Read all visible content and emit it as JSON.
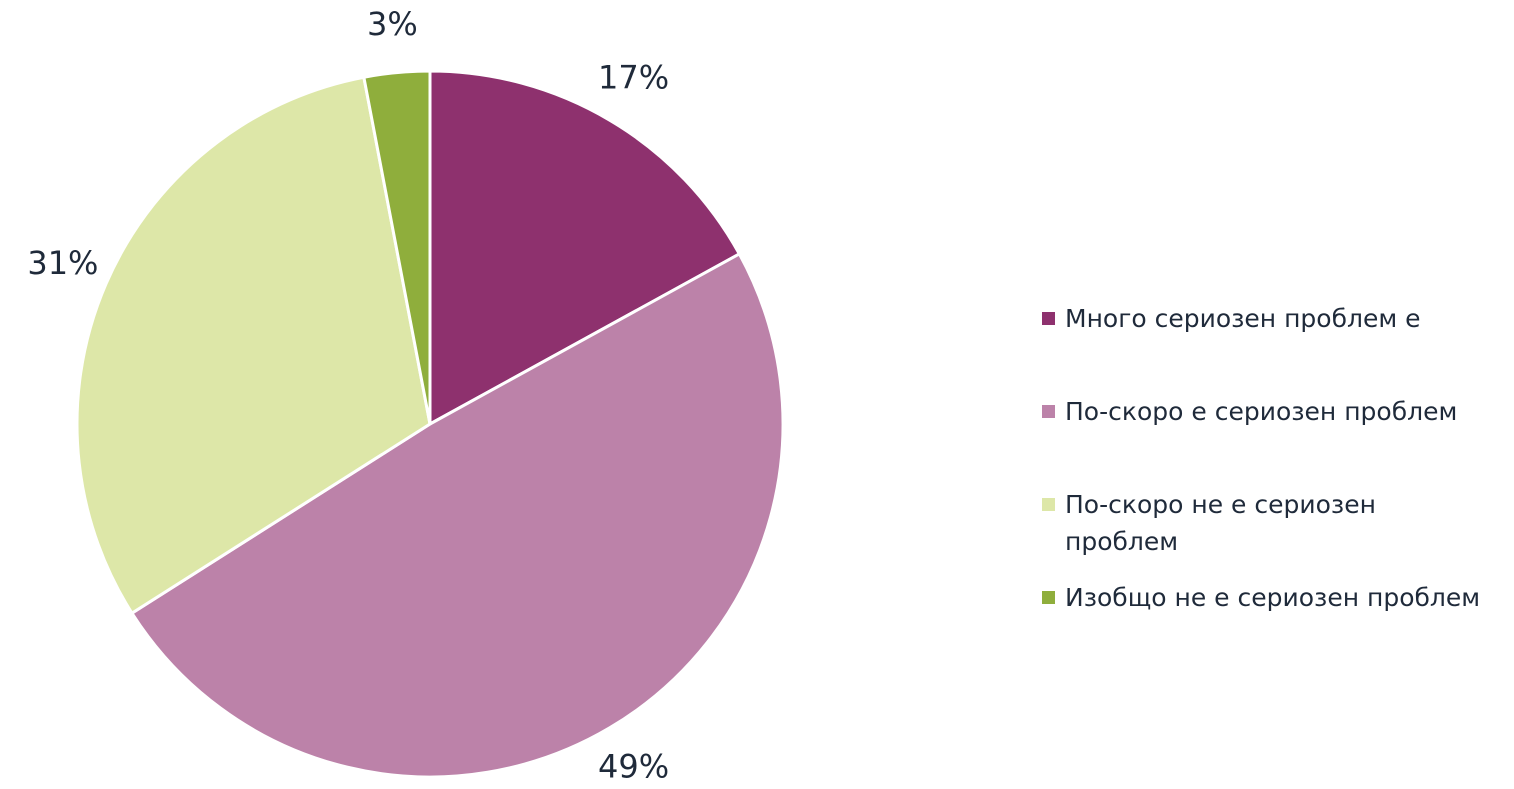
{
  "chart_data": {
    "type": "pie",
    "categories": [
      "Много сериозен проблем е",
      "По-скоро е сериозен проблем",
      "По-скоро не е сериозен проблем",
      "Изобщо не е сериозен проблем"
    ],
    "values": [
      17,
      49,
      31,
      3
    ],
    "value_labels": [
      "17%",
      "49%",
      "31%",
      "3%"
    ],
    "colors": [
      "#8e316e",
      "#bc82a9",
      "#dde7a8",
      "#8fae3c"
    ],
    "legend": "right"
  }
}
